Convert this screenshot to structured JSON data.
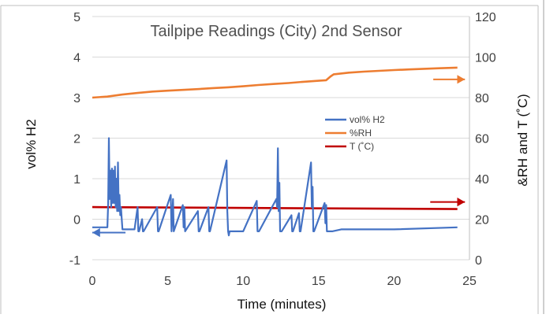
{
  "chart_data": {
    "type": "line",
    "title": "Tailpipe Readings (City) 2nd Sensor",
    "xlabel": "Time (minutes)",
    "ylabel": "vol% H2",
    "y2label": "&RH and T (˚C)",
    "xlim": [
      0,
      25
    ],
    "ylim": [
      -1,
      5
    ],
    "y2lim": [
      0,
      120
    ],
    "x_ticks": [
      "0",
      "5",
      "10",
      "15",
      "20",
      "25"
    ],
    "y_ticks": [
      "-1",
      "0",
      "1",
      "2",
      "3",
      "4",
      "5"
    ],
    "y2_ticks": [
      "0",
      "20",
      "40",
      "60",
      "80",
      "100",
      "120"
    ],
    "grid": "horizontal",
    "legend_position": "center-right",
    "series": [
      {
        "name": "vol% H2",
        "axis": "left",
        "color": "#4472C4",
        "x": [
          0,
          1.0,
          1.05,
          1.1,
          1.15,
          1.2,
          1.25,
          1.3,
          1.35,
          1.4,
          1.45,
          1.5,
          1.55,
          1.6,
          1.65,
          1.7,
          1.75,
          1.8,
          1.85,
          1.9,
          1.95,
          2.0,
          2.3,
          2.8,
          3.0,
          3.05,
          3.1,
          3.3,
          3.35,
          3.4,
          4.3,
          4.35,
          4.4,
          5.2,
          5.25,
          5.3,
          5.35,
          5.4,
          6.0,
          6.05,
          6.1,
          6.15,
          7.0,
          7.05,
          7.1,
          7.7,
          7.75,
          7.8,
          8.9,
          8.95,
          9.0,
          9.05,
          9.1,
          9.3,
          9.6,
          10.0,
          10.9,
          10.95,
          11.0,
          11.05,
          12.2,
          12.25,
          12.3,
          12.35,
          12.4,
          12.45,
          12.5,
          12.55,
          13.2,
          13.25,
          13.3,
          13.7,
          13.75,
          13.8,
          14.5,
          14.55,
          14.6,
          14.65,
          14.7,
          15.4,
          15.45,
          15.5,
          15.55,
          15.6,
          15.9,
          16.5,
          20.0,
          24.2
        ],
        "y": [
          -0.2,
          -0.2,
          0.4,
          2.0,
          0.5,
          1.2,
          0.3,
          1.25,
          0.4,
          1.2,
          0.4,
          1.3,
          0.3,
          1.0,
          0.2,
          1.4,
          0.2,
          0.6,
          0.1,
          0.3,
          0.0,
          -0.25,
          -0.25,
          -0.25,
          0.3,
          -0.3,
          -0.3,
          0.0,
          -0.3,
          -0.3,
          0.3,
          -0.3,
          -0.3,
          0.6,
          -0.3,
          0.0,
          0.5,
          -0.3,
          0.35,
          -0.2,
          0.3,
          -0.3,
          0.2,
          -0.3,
          -0.3,
          0.3,
          -0.3,
          -0.3,
          1.45,
          0.2,
          -0.3,
          -0.4,
          -0.3,
          -0.3,
          -0.3,
          -0.3,
          0.45,
          -0.3,
          -0.3,
          -0.3,
          0.5,
          0.3,
          1.75,
          0.2,
          0.9,
          -0.3,
          -0.3,
          -0.3,
          0.1,
          -0.3,
          -0.3,
          0.15,
          -0.3,
          -0.3,
          1.4,
          0.3,
          0.8,
          -0.3,
          -0.3,
          0.4,
          -0.1,
          0.35,
          -0.3,
          -0.3,
          -0.3,
          -0.25,
          -0.25,
          -0.2
        ]
      },
      {
        "name": "%RH",
        "axis": "right",
        "color": "#ED7D31",
        "x": [
          0,
          1,
          2,
          3,
          4,
          5,
          6,
          7,
          8,
          9,
          10,
          11,
          12,
          13,
          14,
          15,
          15.5,
          15.8,
          16.0,
          17,
          18,
          19,
          20,
          21,
          22,
          23,
          24.2
        ],
        "y": [
          80,
          80.5,
          81.5,
          82.3,
          83,
          83.4,
          83.8,
          84.2,
          84.7,
          85.1,
          85.6,
          86.2,
          86.7,
          87.2,
          87.8,
          88.3,
          88.6,
          90.5,
          91.5,
          92.3,
          92.8,
          93.2,
          93.6,
          93.9,
          94.2,
          94.5,
          94.8
        ]
      },
      {
        "name": "T (˚C)",
        "axis": "right",
        "color": "#C00000",
        "x": [
          0,
          24.2
        ],
        "y": [
          26,
          25
        ]
      }
    ],
    "annotations": [
      {
        "type": "arrow",
        "direction": "left",
        "color": "#4472C4",
        "x_from": 2.2,
        "x_to": 0,
        "y": -0.33,
        "axis": "left"
      },
      {
        "type": "arrow",
        "direction": "right",
        "color": "#ED7D31",
        "x_from": 22.6,
        "x_to": 24.7,
        "y": 89,
        "axis": "right"
      },
      {
        "type": "arrow",
        "direction": "right",
        "color": "#C00000",
        "x_from": 22.4,
        "x_to": 24.7,
        "y": 28.5,
        "axis": "right"
      }
    ]
  }
}
